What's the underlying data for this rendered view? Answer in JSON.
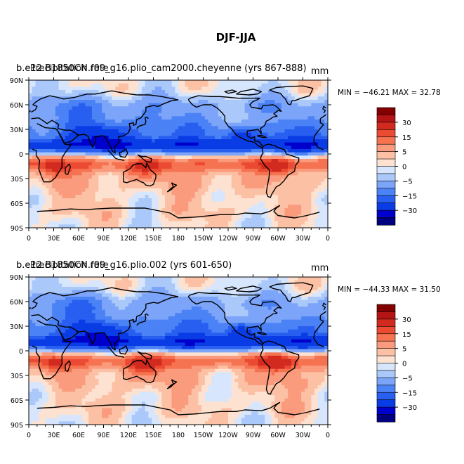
{
  "title": "DJF-JJA",
  "colors": {
    "levels": [
      "#00007f",
      "#0000cd",
      "#0a3ce6",
      "#285ff0",
      "#4b82f5",
      "#7ca5fa",
      "#aac8fa",
      "#d7e6fc",
      "#fde2d2",
      "#fcc1a5",
      "#fa9b7d",
      "#f57350",
      "#eb4b32",
      "#d22a1e",
      "#b41414",
      "#820000"
    ]
  },
  "chart_data": [
    {
      "type": "heatmap",
      "title_left": "b.e12.B1850CN.f09_g16.plio_cam2000.cheyenne (yrs 867-888)",
      "title_overlap": "Precipitation rate",
      "units": "mm",
      "min_max_text": "MIN = −46.21  MAX =  32.78",
      "min": -46.21,
      "max": 32.78,
      "x_ticks": [
        "0",
        "30E",
        "60E",
        "90E",
        "120E",
        "150E",
        "180",
        "150W",
        "120W",
        "90W",
        "60W",
        "30W",
        "0"
      ],
      "y_ticks": [
        "90N",
        "60N",
        "30N",
        "0",
        "30S",
        "60S",
        "90S"
      ],
      "colorbar_labels": [
        "30",
        "15",
        "5",
        "0",
        "−5",
        "−15",
        "−30"
      ],
      "x_range": [
        0,
        360
      ],
      "y_range": [
        -90,
        90
      ]
    },
    {
      "type": "heatmap",
      "title_left": "b.e12.B1850CN.f09_g16.plio.002 (yrs 601-650)",
      "title_overlap": "Precipitation rate",
      "units": "mm",
      "min_max_text": "MIN = −44.33  MAX =  31.50",
      "min": -44.33,
      "max": 31.5,
      "x_ticks": [
        "0",
        "30E",
        "60E",
        "90E",
        "120E",
        "150E",
        "180",
        "150W",
        "120W",
        "90W",
        "60W",
        "30W",
        "0"
      ],
      "y_ticks": [
        "90N",
        "60N",
        "30N",
        "0",
        "30S",
        "60S",
        "90S"
      ],
      "colorbar_labels": [
        "30",
        "15",
        "5",
        "0",
        "−5",
        "−15",
        "−30"
      ],
      "x_range": [
        0,
        360
      ],
      "y_range": [
        -90,
        90
      ]
    }
  ]
}
